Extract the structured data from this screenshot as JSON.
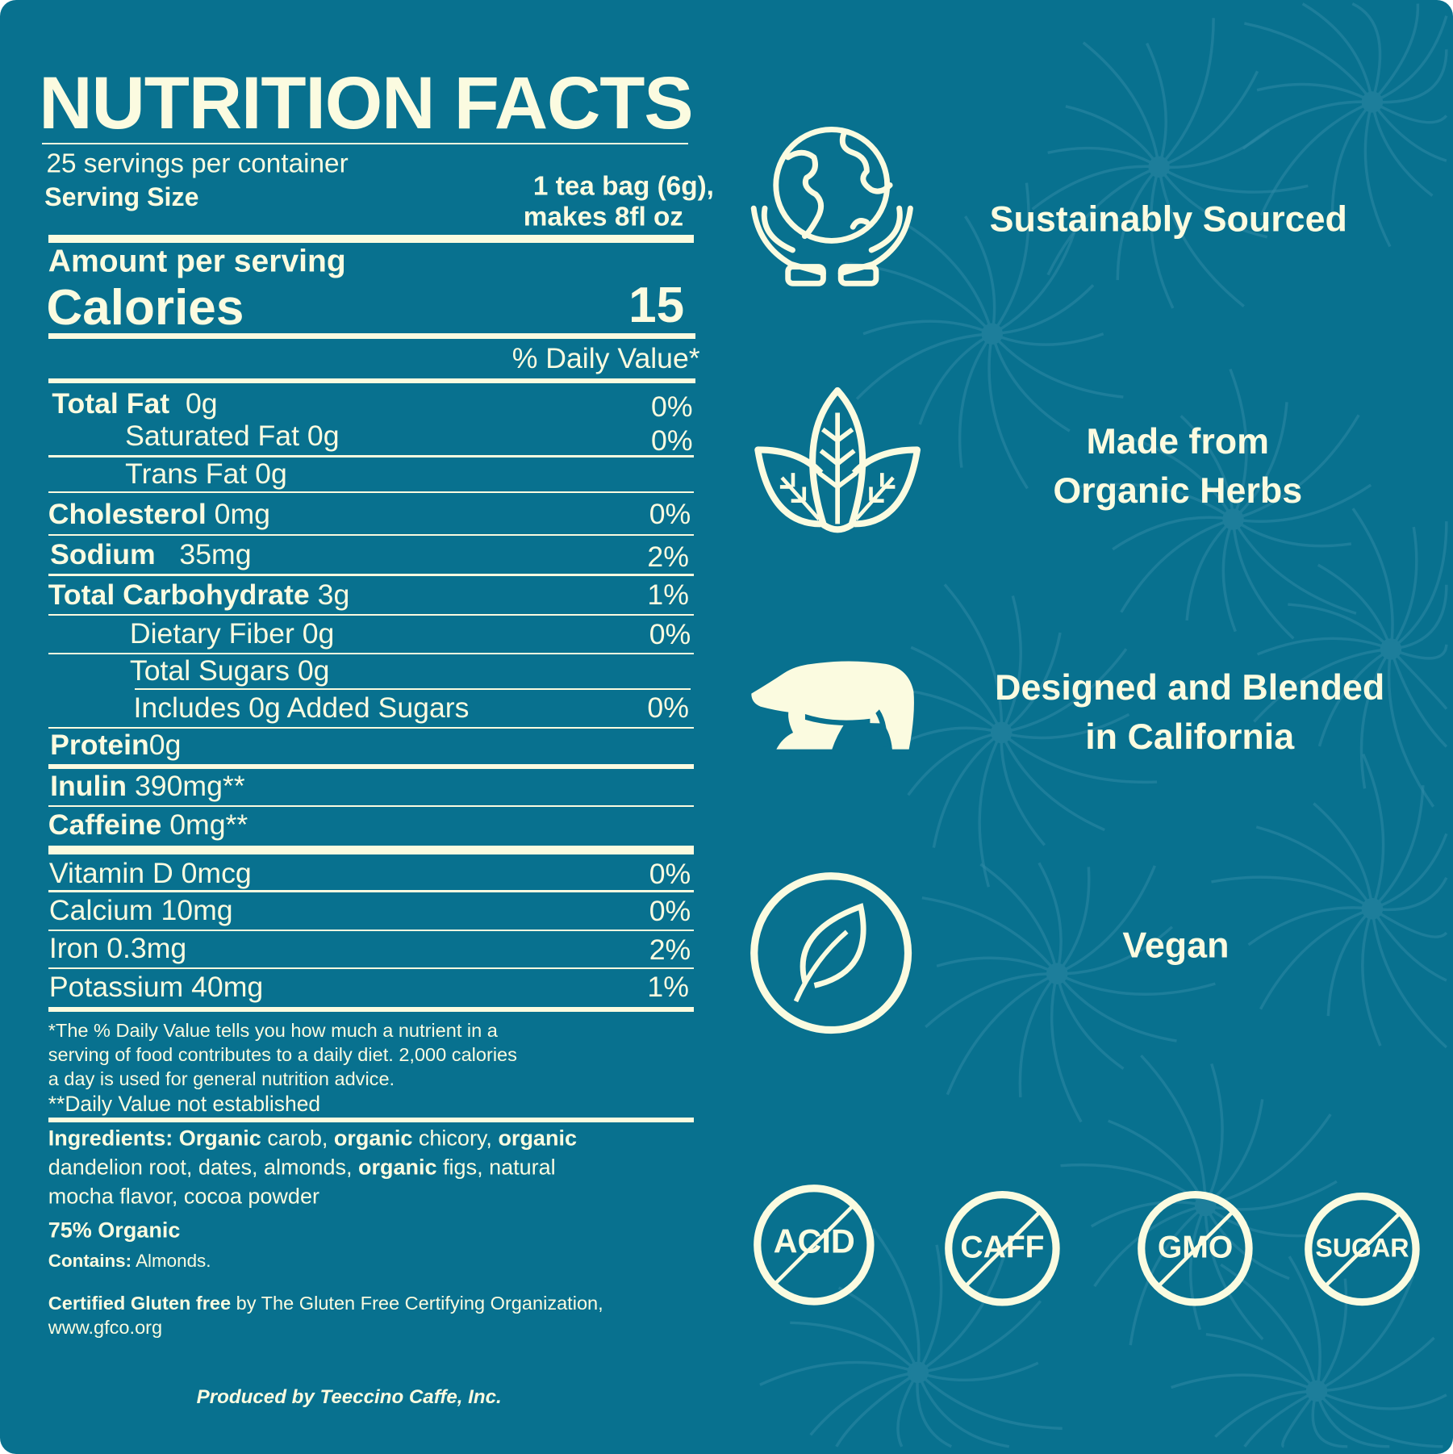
{
  "colors": {
    "background": "#08718f",
    "foreground": "#fbfbe0"
  },
  "label": {
    "title": "NUTRITION FACTS",
    "servings_per_container": "25 servings per container",
    "serving_size_label": "Serving Size",
    "serving_size_line1": "1 tea bag (6g),",
    "serving_size_line2": "makes 8fl oz",
    "amount_per_serving": "Amount per serving",
    "calories_label": "Calories",
    "calories_value": "15",
    "daily_value_header": "% Daily Value*",
    "nutrients": [
      {
        "name": "Total Fat",
        "amount": "0g",
        "dv": "0%"
      },
      {
        "name": "Saturated Fat 0g",
        "dv": "0%"
      },
      {
        "name": "Trans Fat 0g"
      },
      {
        "name": "Cholesterol",
        "amount": "0mg",
        "dv": "0%"
      },
      {
        "name": "Sodium",
        "amount": "35mg",
        "dv": "2%"
      },
      {
        "name": "Total Carbohydrate",
        "amount": "3g",
        "dv": "1%"
      },
      {
        "name": "Dietary Fiber 0g",
        "dv": "0%"
      },
      {
        "name": "Total Sugars 0g"
      },
      {
        "name": "Includes 0g Added Sugars",
        "dv": "0%"
      },
      {
        "name": "Protein",
        "amount": "0g"
      },
      {
        "name": "Inulin",
        "amount": "390mg**"
      },
      {
        "name": "Caffeine",
        "amount": "0mg**"
      },
      {
        "name": "Vitamin D 0mcg",
        "dv": "0%"
      },
      {
        "name": "Calcium 10mg",
        "dv": "0%"
      },
      {
        "name": "Iron 0.3mg",
        "dv": "2%"
      },
      {
        "name": "Potassium 40mg",
        "dv": "1%"
      }
    ],
    "footnote": [
      "*The % Daily Value tells you how much a nutrient in a",
      "serving of food contributes to a daily diet. 2,000 calories",
      "a day is used for general nutrition advice.",
      "**Daily Value not established"
    ],
    "ingredients_label": "Ingredients:",
    "ingredients_line1": {
      "a": "Organic",
      "b": " carob, ",
      "c": "organic",
      "d": " chicory, ",
      "e": "organic"
    },
    "ingredients_line2": {
      "a": "dandelion root, dates, almonds, ",
      "b": "organic",
      "c": " figs, natural"
    },
    "ingredients_line3": "mocha flavor, cocoa powder",
    "organic_percent": "75% Organic",
    "contains_label": "Contains:",
    "contains_value": "Almonds.",
    "gluten_bold": "Certified Gluten free",
    "gluten_rest": " by The Gluten Free Certifying Organization,",
    "gluten_url": "www.gfco.org",
    "producer": "Produced by Teeccino Caffe, Inc."
  },
  "features": [
    {
      "icon": "globe-in-hands-icon",
      "line1": "Sustainably Sourced"
    },
    {
      "icon": "herb-leaves-icon",
      "line1": "Made from",
      "line2": "Organic Herbs"
    },
    {
      "icon": "bear-icon",
      "line1": "Designed and Blended",
      "line2": "in California"
    },
    {
      "icon": "leaf-circle-icon",
      "line1": "Vegan"
    }
  ],
  "free_badges": [
    "ACID",
    "CAFF",
    "GMO",
    "SUGAR"
  ]
}
